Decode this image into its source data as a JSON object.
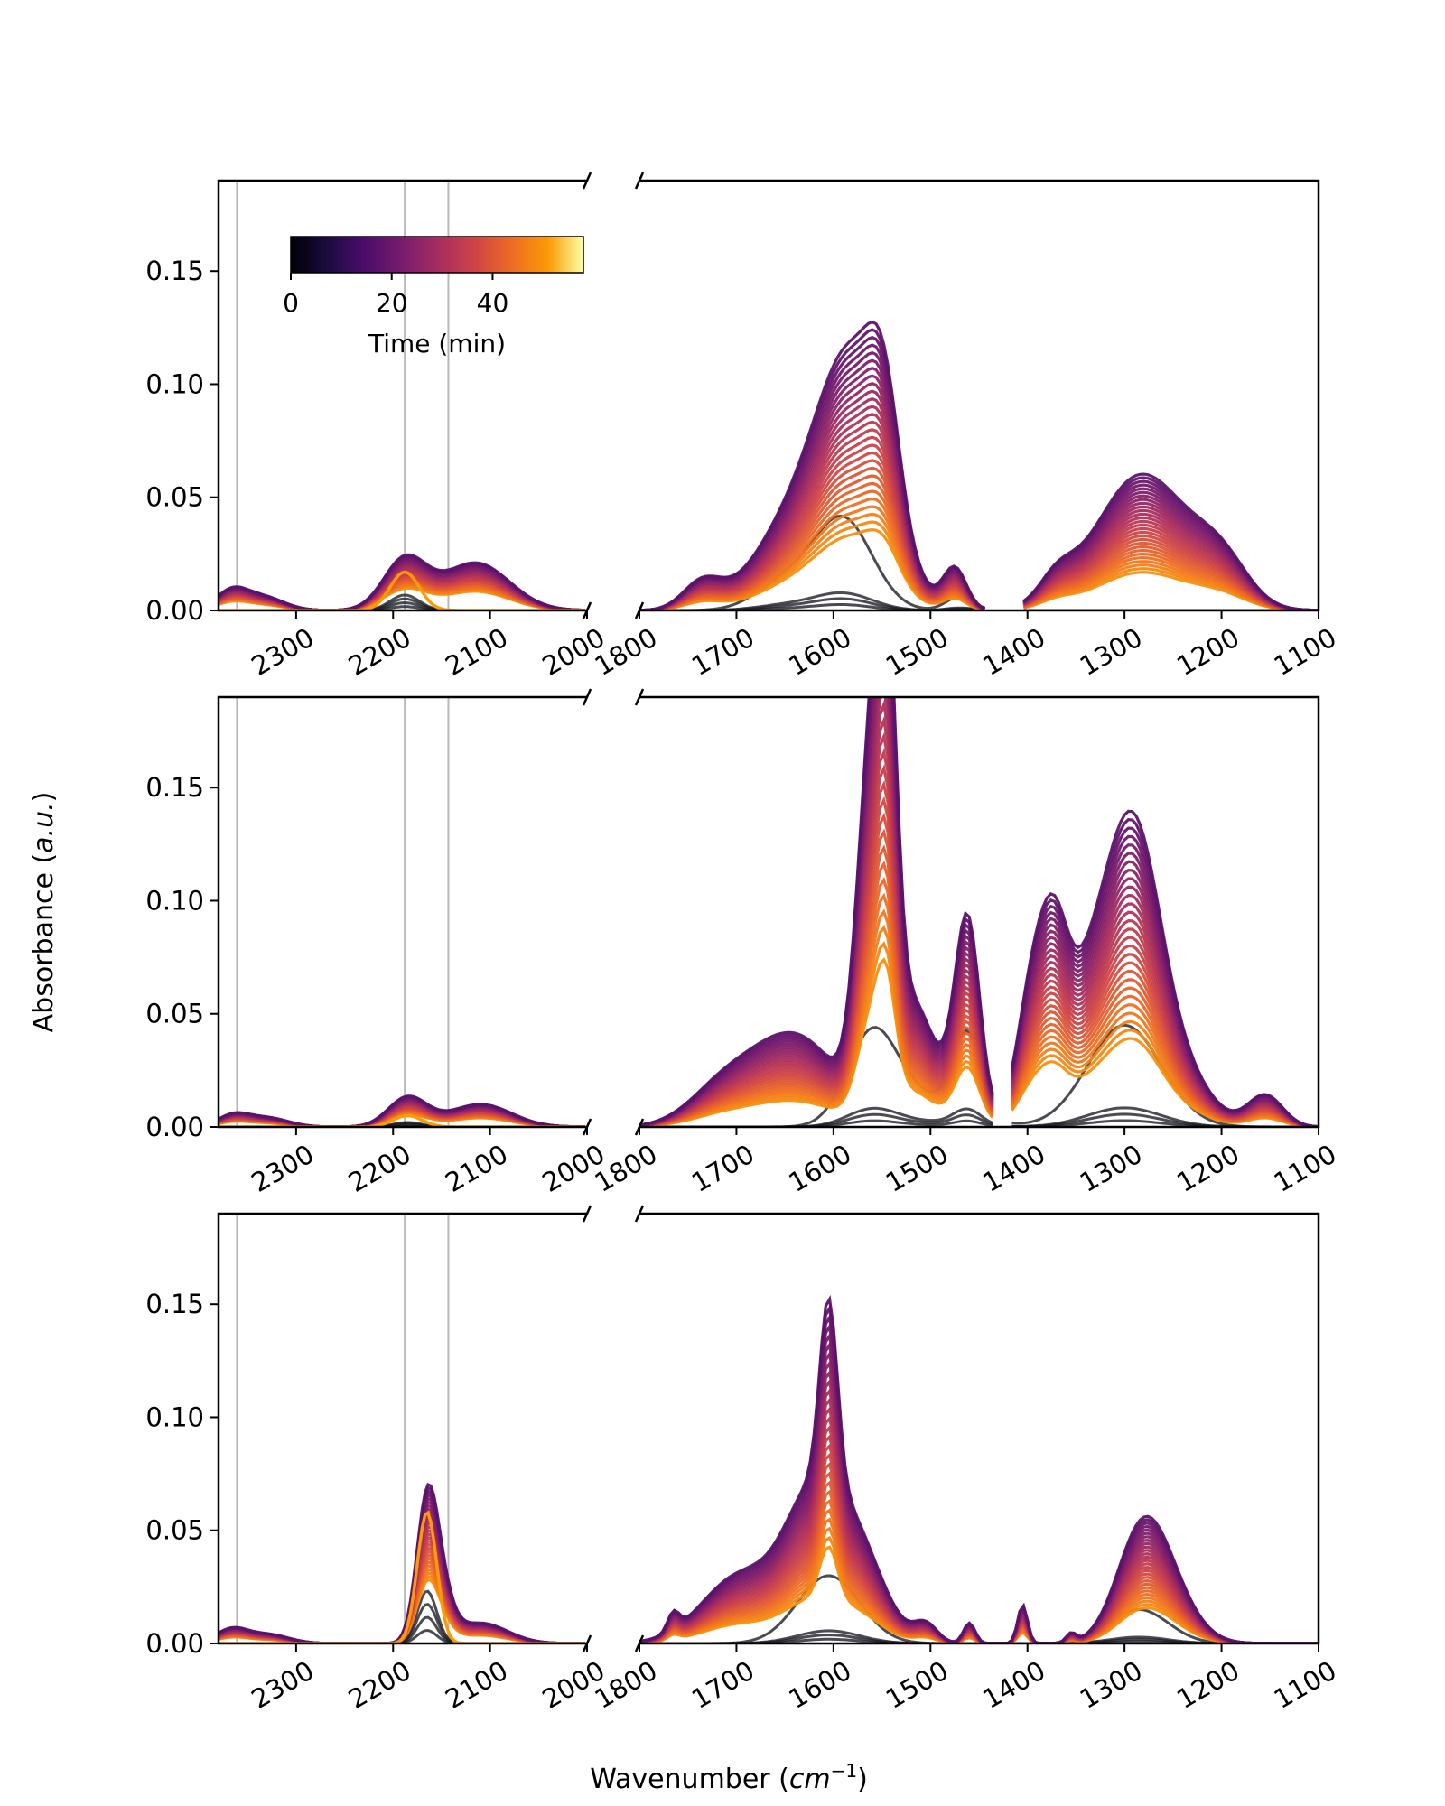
{
  "figure": {
    "xlabel": "Wavenumber (cm⁻¹)",
    "ylabel": "Absorbance (a.u.)"
  },
  "colorbar": {
    "label": "Time (min)",
    "ticks": [
      "0",
      "20",
      "40"
    ],
    "tick_values": [
      0,
      20,
      40
    ],
    "range": [
      0,
      58
    ],
    "colormap": "inferno"
  },
  "chart_data": {
    "type": "line",
    "y_ticks": [
      "0.00",
      "0.05",
      "0.10",
      "0.15"
    ],
    "y_tick_values": [
      0.0,
      0.05,
      0.1,
      0.15
    ],
    "ylim": [
      0,
      0.19
    ],
    "left_xlim": [
      2380,
      2000
    ],
    "right_xlim": [
      1800,
      1100
    ],
    "left_x_ticks": [
      "2300",
      "2200",
      "2100",
      "2000"
    ],
    "left_x_tick_values": [
      2300,
      2200,
      2100,
      2000
    ],
    "right_x_ticks": [
      "1800",
      "1700",
      "1600",
      "1500",
      "1400",
      "1300",
      "1200",
      "1100"
    ],
    "right_x_tick_values": [
      1800,
      1700,
      1600,
      1500,
      1400,
      1300,
      1200,
      1100
    ],
    "reference_lines_x": [
      2361,
      2188,
      2143
    ],
    "grid": false,
    "n_time_curves": 28,
    "panels": [
      {
        "left_peaks": [
          [
            2367,
            0.008,
            16
          ],
          [
            2335,
            0.006,
            22
          ],
          [
            2188,
            0.022,
            22
          ],
          [
            2115,
            0.021,
            35
          ]
        ],
        "left_final_peaks": [
          [
            2188,
            0.017,
            15
          ]
        ],
        "right_peaks": [
          [
            1735,
            0.012,
            20
          ],
          [
            1645,
            0.034,
            40
          ],
          [
            1580,
            0.105,
            36
          ],
          [
            1548,
            0.045,
            16
          ],
          [
            1475,
            0.018,
            12
          ],
          [
            1370,
            0.01,
            18
          ],
          [
            1282,
            0.06,
            48
          ],
          [
            1200,
            0.018,
            28
          ]
        ],
        "gaps": [
          [
            1440,
            1405
          ]
        ],
        "black_peaks": [
          [
            1650,
            0.012,
            30
          ],
          [
            1590,
            0.04,
            30
          ],
          [
            1470,
            0.006,
            14
          ]
        ]
      },
      {
        "left_peaks": [
          [
            2365,
            0.005,
            16
          ],
          [
            2330,
            0.004,
            22
          ],
          [
            2185,
            0.013,
            20
          ],
          [
            2110,
            0.01,
            32
          ]
        ],
        "left_final_peaks": [
          [
            2185,
            0.005,
            15
          ]
        ],
        "right_peaks": [
          [
            1715,
            0.015,
            35
          ],
          [
            1640,
            0.04,
            45
          ],
          [
            1562,
            0.14,
            14
          ],
          [
            1545,
            0.15,
            10
          ],
          [
            1520,
            0.055,
            26
          ],
          [
            1462,
            0.09,
            13
          ],
          [
            1395,
            0.055,
            16
          ],
          [
            1372,
            0.05,
            14
          ],
          [
            1340,
            0.055,
            30
          ],
          [
            1290,
            0.12,
            28
          ],
          [
            1240,
            0.02,
            30
          ],
          [
            1155,
            0.014,
            18
          ]
        ],
        "gaps": [
          [
            1435,
            1420
          ]
        ],
        "black_peaks": [
          [
            1560,
            0.04,
            26
          ],
          [
            1462,
            0.035,
            14
          ],
          [
            1300,
            0.045,
            38
          ],
          [
            1500,
            0.012,
            40
          ]
        ]
      },
      {
        "left_peaks": [
          [
            2367,
            0.006,
            16
          ],
          [
            2330,
            0.004,
            22
          ],
          [
            2165,
            0.06,
            11
          ],
          [
            2150,
            0.018,
            12
          ],
          [
            2110,
            0.009,
            28
          ]
        ],
        "left_final_peaks": [
          [
            2165,
            0.058,
            10
          ]
        ],
        "right_peaks": [
          [
            1765,
            0.008,
            6
          ],
          [
            1695,
            0.03,
            40
          ],
          [
            1625,
            0.05,
            28
          ],
          [
            1605,
            0.08,
            9
          ],
          [
            1580,
            0.045,
            30
          ],
          [
            1505,
            0.008,
            12
          ],
          [
            1460,
            0.009,
            6
          ],
          [
            1405,
            0.017,
            5
          ],
          [
            1355,
            0.004,
            5
          ],
          [
            1285,
            0.03,
            25
          ],
          [
            1265,
            0.03,
            30
          ]
        ],
        "gaps": [],
        "black_peaks": [
          [
            1605,
            0.03,
            32
          ],
          [
            1285,
            0.015,
            30
          ]
        ]
      }
    ]
  }
}
